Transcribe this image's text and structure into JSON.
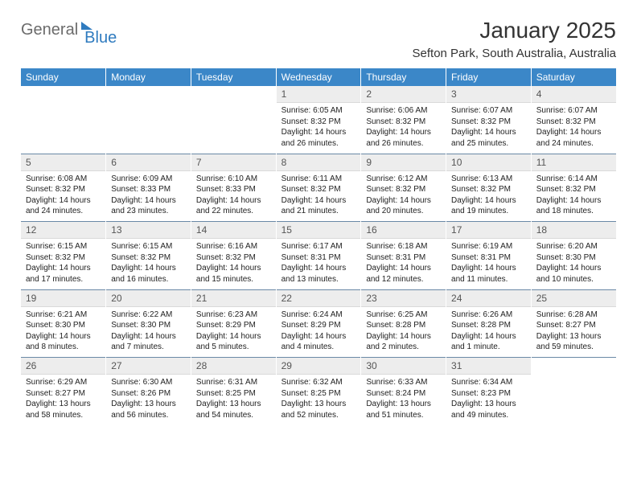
{
  "brand": {
    "general": "General",
    "blue": "Blue"
  },
  "title": "January 2025",
  "location": "Sefton Park, South Australia, Australia",
  "colors": {
    "header_bg": "#3b87c8",
    "daynum_bg": "#ededed",
    "week_sep": "#6a89a6"
  },
  "weekdays": [
    "Sunday",
    "Monday",
    "Tuesday",
    "Wednesday",
    "Thursday",
    "Friday",
    "Saturday"
  ],
  "weeks": [
    [
      null,
      null,
      null,
      {
        "n": "1",
        "sunrise": "6:05 AM",
        "sunset": "8:32 PM",
        "daylight": "14 hours and 26 minutes."
      },
      {
        "n": "2",
        "sunrise": "6:06 AM",
        "sunset": "8:32 PM",
        "daylight": "14 hours and 26 minutes."
      },
      {
        "n": "3",
        "sunrise": "6:07 AM",
        "sunset": "8:32 PM",
        "daylight": "14 hours and 25 minutes."
      },
      {
        "n": "4",
        "sunrise": "6:07 AM",
        "sunset": "8:32 PM",
        "daylight": "14 hours and 24 minutes."
      }
    ],
    [
      {
        "n": "5",
        "sunrise": "6:08 AM",
        "sunset": "8:32 PM",
        "daylight": "14 hours and 24 minutes."
      },
      {
        "n": "6",
        "sunrise": "6:09 AM",
        "sunset": "8:33 PM",
        "daylight": "14 hours and 23 minutes."
      },
      {
        "n": "7",
        "sunrise": "6:10 AM",
        "sunset": "8:33 PM",
        "daylight": "14 hours and 22 minutes."
      },
      {
        "n": "8",
        "sunrise": "6:11 AM",
        "sunset": "8:32 PM",
        "daylight": "14 hours and 21 minutes."
      },
      {
        "n": "9",
        "sunrise": "6:12 AM",
        "sunset": "8:32 PM",
        "daylight": "14 hours and 20 minutes."
      },
      {
        "n": "10",
        "sunrise": "6:13 AM",
        "sunset": "8:32 PM",
        "daylight": "14 hours and 19 minutes."
      },
      {
        "n": "11",
        "sunrise": "6:14 AM",
        "sunset": "8:32 PM",
        "daylight": "14 hours and 18 minutes."
      }
    ],
    [
      {
        "n": "12",
        "sunrise": "6:15 AM",
        "sunset": "8:32 PM",
        "daylight": "14 hours and 17 minutes."
      },
      {
        "n": "13",
        "sunrise": "6:15 AM",
        "sunset": "8:32 PM",
        "daylight": "14 hours and 16 minutes."
      },
      {
        "n": "14",
        "sunrise": "6:16 AM",
        "sunset": "8:32 PM",
        "daylight": "14 hours and 15 minutes."
      },
      {
        "n": "15",
        "sunrise": "6:17 AM",
        "sunset": "8:31 PM",
        "daylight": "14 hours and 13 minutes."
      },
      {
        "n": "16",
        "sunrise": "6:18 AM",
        "sunset": "8:31 PM",
        "daylight": "14 hours and 12 minutes."
      },
      {
        "n": "17",
        "sunrise": "6:19 AM",
        "sunset": "8:31 PM",
        "daylight": "14 hours and 11 minutes."
      },
      {
        "n": "18",
        "sunrise": "6:20 AM",
        "sunset": "8:30 PM",
        "daylight": "14 hours and 10 minutes."
      }
    ],
    [
      {
        "n": "19",
        "sunrise": "6:21 AM",
        "sunset": "8:30 PM",
        "daylight": "14 hours and 8 minutes."
      },
      {
        "n": "20",
        "sunrise": "6:22 AM",
        "sunset": "8:30 PM",
        "daylight": "14 hours and 7 minutes."
      },
      {
        "n": "21",
        "sunrise": "6:23 AM",
        "sunset": "8:29 PM",
        "daylight": "14 hours and 5 minutes."
      },
      {
        "n": "22",
        "sunrise": "6:24 AM",
        "sunset": "8:29 PM",
        "daylight": "14 hours and 4 minutes."
      },
      {
        "n": "23",
        "sunrise": "6:25 AM",
        "sunset": "8:28 PM",
        "daylight": "14 hours and 2 minutes."
      },
      {
        "n": "24",
        "sunrise": "6:26 AM",
        "sunset": "8:28 PM",
        "daylight": "14 hours and 1 minute."
      },
      {
        "n": "25",
        "sunrise": "6:28 AM",
        "sunset": "8:27 PM",
        "daylight": "13 hours and 59 minutes."
      }
    ],
    [
      {
        "n": "26",
        "sunrise": "6:29 AM",
        "sunset": "8:27 PM",
        "daylight": "13 hours and 58 minutes."
      },
      {
        "n": "27",
        "sunrise": "6:30 AM",
        "sunset": "8:26 PM",
        "daylight": "13 hours and 56 minutes."
      },
      {
        "n": "28",
        "sunrise": "6:31 AM",
        "sunset": "8:25 PM",
        "daylight": "13 hours and 54 minutes."
      },
      {
        "n": "29",
        "sunrise": "6:32 AM",
        "sunset": "8:25 PM",
        "daylight": "13 hours and 52 minutes."
      },
      {
        "n": "30",
        "sunrise": "6:33 AM",
        "sunset": "8:24 PM",
        "daylight": "13 hours and 51 minutes."
      },
      {
        "n": "31",
        "sunrise": "6:34 AM",
        "sunset": "8:23 PM",
        "daylight": "13 hours and 49 minutes."
      },
      null
    ]
  ],
  "labels": {
    "sunrise": "Sunrise: ",
    "sunset": "Sunset: ",
    "daylight": "Daylight: "
  }
}
